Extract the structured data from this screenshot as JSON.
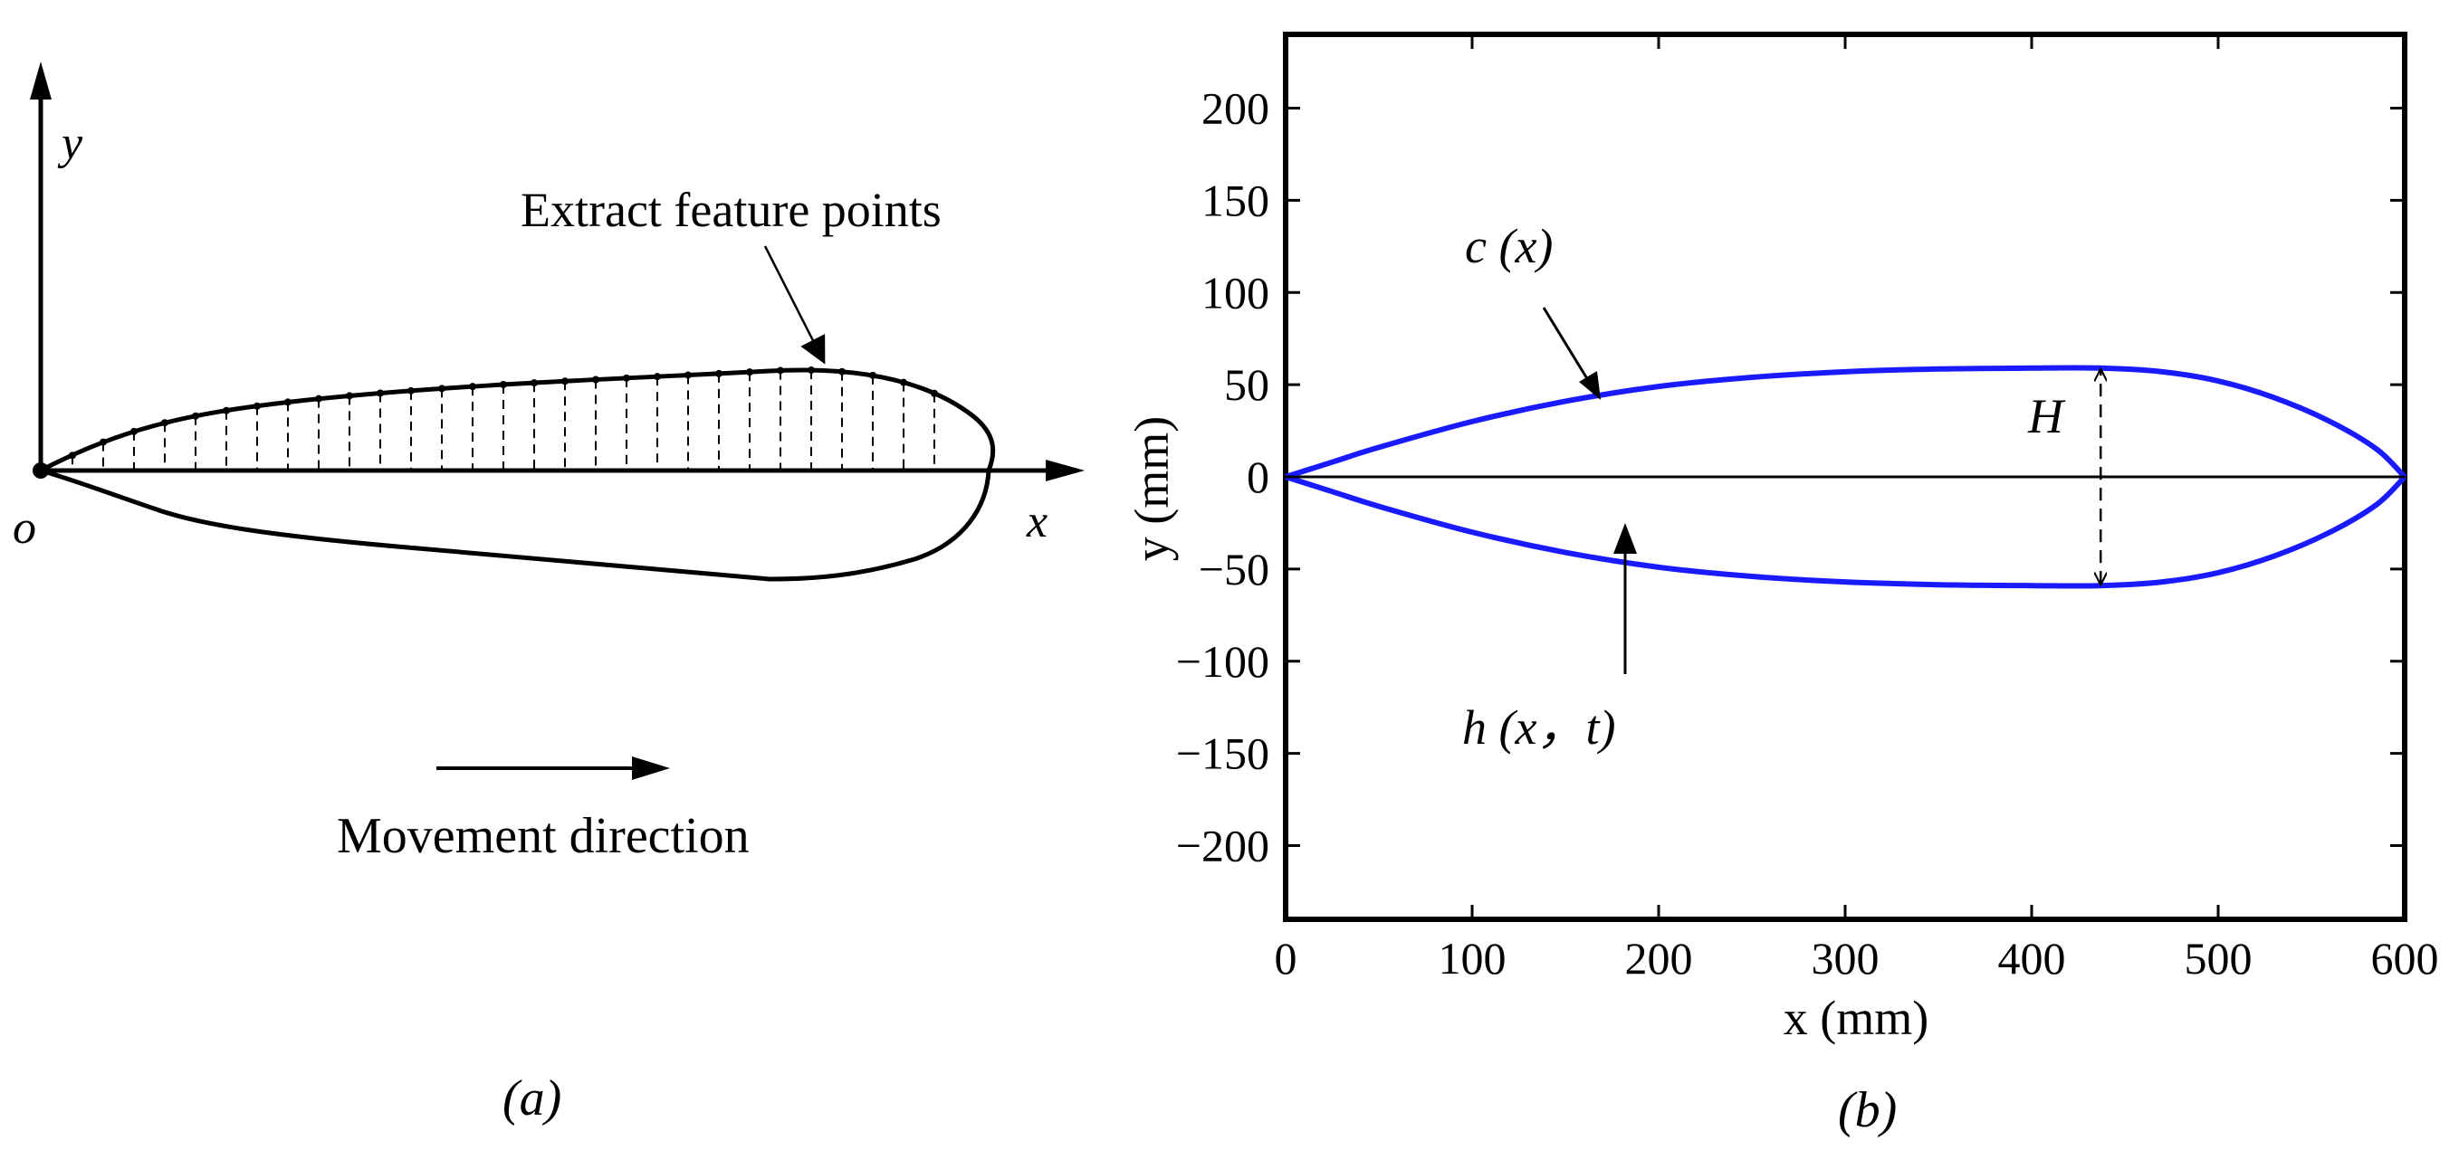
{
  "panel_a": {
    "caption": "(a)",
    "axis_x_label": "x",
    "axis_y_label": "y",
    "origin_label": "o",
    "annotation": "Extract feature points",
    "movement_label": "Movement direction"
  },
  "panel_b": {
    "caption": "(b)",
    "label_c": "c (x)",
    "label_h": "h (x，t)",
    "label_H": "H"
  },
  "chart_data": {
    "type": "line",
    "xlabel": "x (mm)",
    "ylabel": "y (mm)",
    "xlim": [
      0,
      600
    ],
    "ylim": [
      -240,
      240
    ],
    "x_ticks": [
      0,
      100,
      200,
      300,
      400,
      500,
      600
    ],
    "y_ticks": [
      200,
      150,
      100,
      50,
      0,
      -50,
      -100,
      -150,
      -200
    ],
    "grid": false,
    "legend": "none",
    "series_color": "#1a1aff",
    "series": [
      {
        "x": [
          0,
          25,
          50,
          100,
          150,
          200,
          250,
          300,
          350,
          400,
          437,
          470,
          500,
          530,
          560,
          585,
          600
        ],
        "values": [
          0,
          8,
          16,
          30,
          41,
          49,
          54,
          57,
          58.5,
          59,
          59,
          57,
          52,
          43,
          30,
          15,
          0
        ]
      },
      {
        "x": [
          0,
          25,
          50,
          100,
          150,
          200,
          250,
          300,
          350,
          400,
          437,
          470,
          500,
          530,
          560,
          585,
          600
        ],
        "values": [
          0,
          -8,
          -16,
          -30,
          -41,
          -49,
          -54,
          -57,
          -58.5,
          -59,
          -59,
          -57,
          -52,
          -43,
          -30,
          -15,
          0
        ]
      },
      {
        "x": [
          0,
          600
        ],
        "values": [
          0,
          0
        ]
      }
    ]
  }
}
